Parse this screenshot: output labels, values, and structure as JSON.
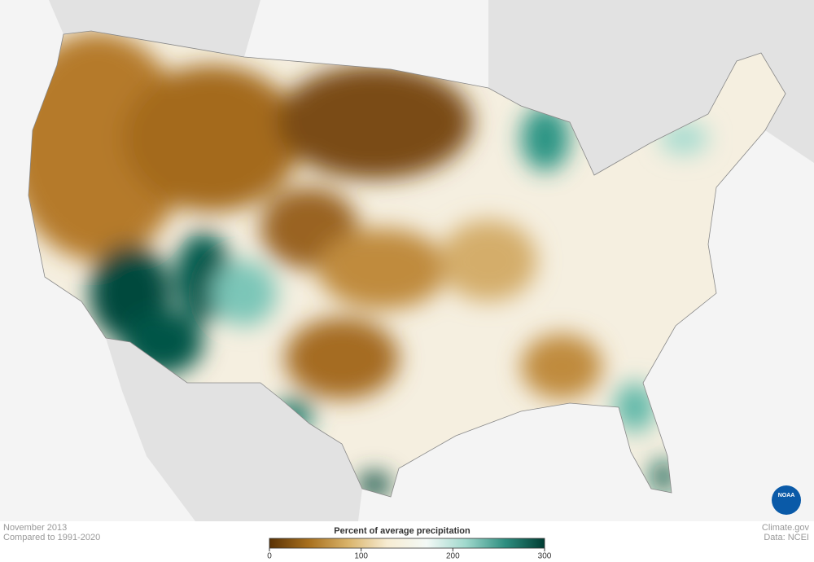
{
  "title_block": {
    "date": "November 2013",
    "baseline": "Compared to 1991-2020"
  },
  "legend": {
    "title": "Percent of average precipitation",
    "range": [
      0,
      300
    ],
    "ticks": [
      0,
      100,
      200,
      300
    ],
    "colors": [
      "#5a3205",
      "#a8701e",
      "#d9b36a",
      "#f7ecd2",
      "#f3f9f6",
      "#9fd8cc",
      "#2e8e80",
      "#003d33"
    ]
  },
  "credits": {
    "site": "Climate.gov",
    "source": "Data: NCEI"
  },
  "logo": "NOAA"
}
